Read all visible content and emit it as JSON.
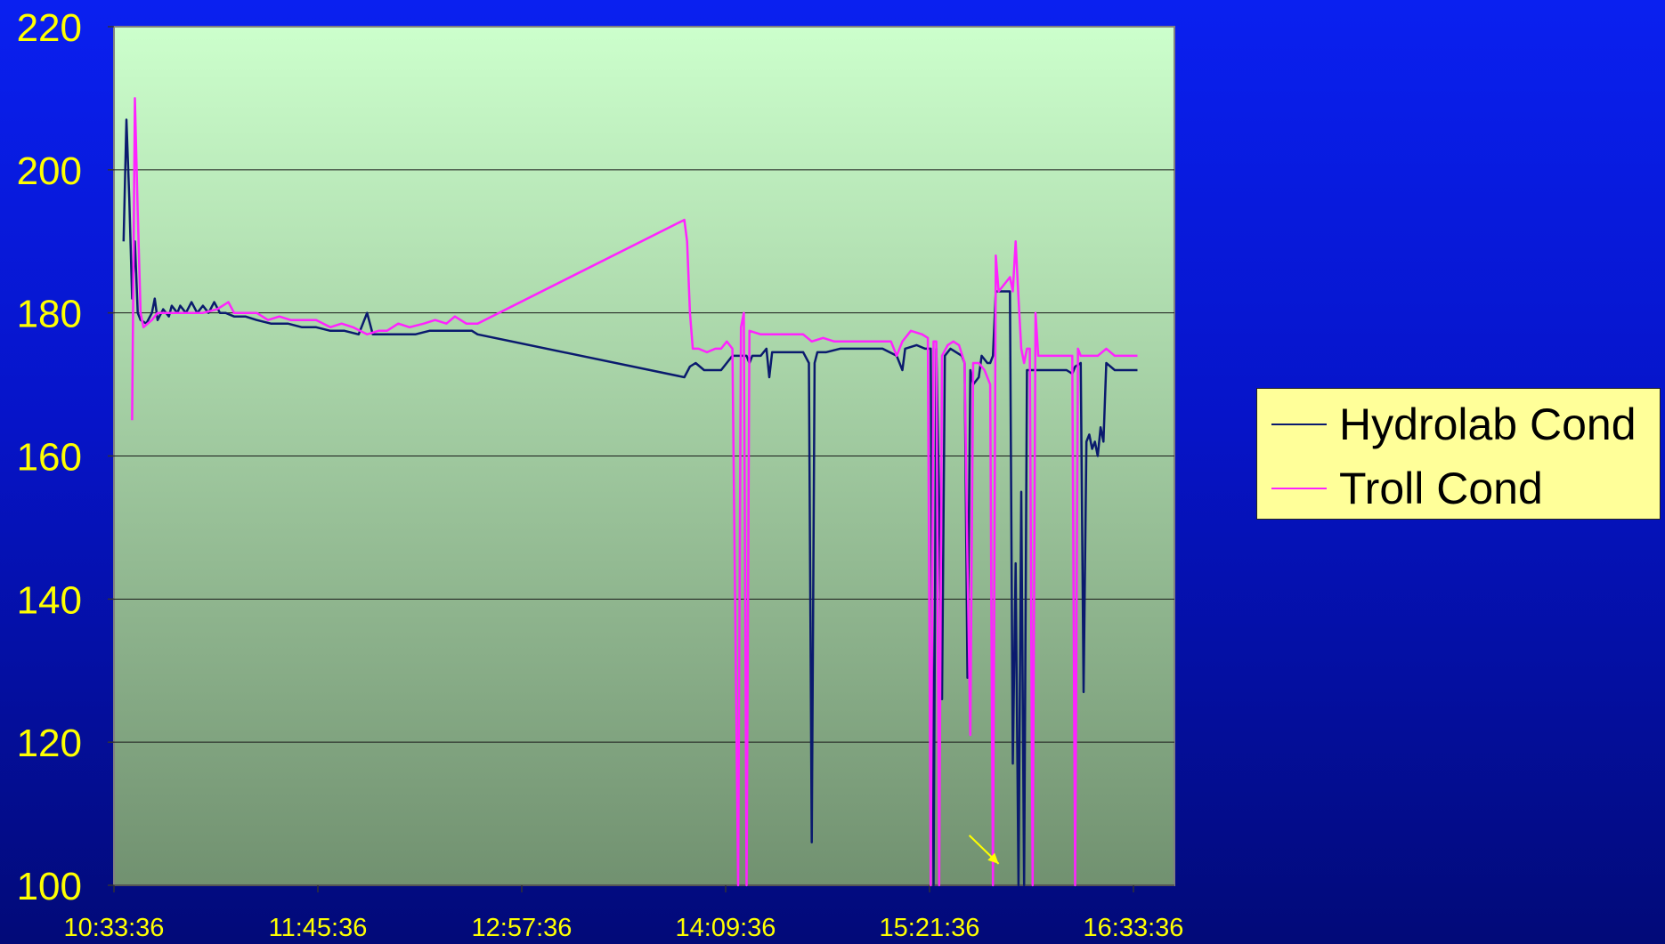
{
  "chart_data": {
    "type": "line",
    "title": "",
    "xlabel": "",
    "ylabel": "",
    "ylim": [
      100,
      220
    ],
    "yticks": [
      100,
      120,
      140,
      160,
      180,
      200,
      220
    ],
    "xticks": [
      "10:33:36",
      "11:45:36",
      "12:57:36",
      "14:09:36",
      "15:21:36",
      "16:33:36"
    ],
    "xlim_minutes_from_first_tick": [
      0,
      375
    ],
    "grid": "horizontal",
    "legend_position": "right",
    "annotations": [
      {
        "type": "arrow",
        "color": "#ffff00",
        "points_to": {
          "x": "15:46",
          "y": 103
        }
      }
    ],
    "series": [
      {
        "name": "Hydrolab Cond",
        "color": "#0a1a6e",
        "points": [
          [
            "10:37",
            190
          ],
          [
            "10:38",
            207
          ],
          [
            "10:39",
            196
          ],
          [
            "10:40",
            182
          ],
          [
            "10:41",
            190
          ],
          [
            "10:42",
            180
          ],
          [
            "10:43",
            179
          ],
          [
            "10:45",
            178.5
          ],
          [
            "10:47",
            180
          ],
          [
            "10:48",
            182
          ],
          [
            "10:49",
            179
          ],
          [
            "10:51",
            180.5
          ],
          [
            "10:53",
            179.5
          ],
          [
            "10:54",
            181
          ],
          [
            "10:56",
            180
          ],
          [
            "10:57",
            181
          ],
          [
            "10:59",
            180
          ],
          [
            "11:01",
            181.5
          ],
          [
            "11:03",
            180
          ],
          [
            "11:05",
            181
          ],
          [
            "11:07",
            180
          ],
          [
            "11:09",
            181.5
          ],
          [
            "11:11",
            180
          ],
          [
            "11:13",
            180
          ],
          [
            "11:16",
            179.5
          ],
          [
            "11:20",
            179.5
          ],
          [
            "11:24",
            179
          ],
          [
            "11:29",
            178.5
          ],
          [
            "11:35",
            178.5
          ],
          [
            "11:40",
            178
          ],
          [
            "11:45",
            178
          ],
          [
            "11:50",
            177.5
          ],
          [
            "11:55",
            177.5
          ],
          [
            "12:00",
            177
          ],
          [
            "12:03",
            180
          ],
          [
            "12:05",
            177
          ],
          [
            "12:10",
            177
          ],
          [
            "12:15",
            177
          ],
          [
            "12:20",
            177
          ],
          [
            "12:25",
            177.5
          ],
          [
            "12:30",
            177.5
          ],
          [
            "12:36",
            177.5
          ],
          [
            "12:40",
            177.5
          ],
          [
            "12:42",
            177
          ],
          [
            "13:55",
            171
          ],
          [
            "13:57",
            172.5
          ],
          [
            "13:59",
            173
          ],
          [
            "14:02",
            172
          ],
          [
            "14:05",
            172
          ],
          [
            "14:08",
            172
          ],
          [
            "14:12",
            174
          ],
          [
            "14:15",
            174
          ],
          [
            "14:17",
            174
          ],
          [
            "14:18",
            173
          ],
          [
            "14:19",
            174
          ],
          [
            "14:22",
            174
          ],
          [
            "14:24",
            175
          ],
          [
            "14:25",
            171
          ],
          [
            "14:26",
            174.5
          ],
          [
            "14:32",
            174.5
          ],
          [
            "14:37",
            174.5
          ],
          [
            "14:39",
            173
          ],
          [
            "14:40",
            106
          ],
          [
            "14:41",
            173
          ],
          [
            "14:42",
            174.5
          ],
          [
            "14:45",
            174.5
          ],
          [
            "14:50",
            175
          ],
          [
            "14:58",
            175
          ],
          [
            "15:05",
            175
          ],
          [
            "15:10",
            174
          ],
          [
            "15:12",
            172
          ],
          [
            "15:13",
            175
          ],
          [
            "15:17",
            175.5
          ],
          [
            "15:20",
            175
          ],
          [
            "15:22",
            175
          ],
          [
            "15:23",
            100
          ],
          [
            "15:24",
            175
          ],
          [
            "15:25",
            153
          ],
          [
            "15:26",
            126
          ],
          [
            "15:27",
            174
          ],
          [
            "15:29",
            175
          ],
          [
            "15:31",
            174.5
          ],
          [
            "15:33",
            174
          ],
          [
            "15:34",
            173
          ],
          [
            "15:35",
            129
          ],
          [
            "15:36",
            172
          ],
          [
            "15:37",
            170
          ],
          [
            "15:39",
            171
          ],
          [
            "15:40",
            174
          ],
          [
            "15:42",
            173
          ],
          [
            "15:43",
            173
          ],
          [
            "15:44",
            174
          ],
          [
            "15:45",
            183
          ],
          [
            "15:47",
            183
          ],
          [
            "15:49",
            183
          ],
          [
            "15:50",
            183
          ],
          [
            "15:51",
            117
          ],
          [
            "15:52",
            145
          ],
          [
            "15:53",
            100
          ],
          [
            "15:54",
            155
          ],
          [
            "15:55",
            100
          ],
          [
            "15:56",
            172
          ],
          [
            "15:57",
            172
          ],
          [
            "16:00",
            172
          ],
          [
            "16:05",
            172
          ],
          [
            "16:10",
            172
          ],
          [
            "16:12",
            171.5
          ],
          [
            "16:13",
            172.5
          ],
          [
            "16:15",
            173
          ],
          [
            "16:16",
            127
          ],
          [
            "16:17",
            162
          ],
          [
            "16:18",
            163
          ],
          [
            "16:19",
            161
          ],
          [
            "16:20",
            162
          ],
          [
            "16:21",
            160
          ],
          [
            "16:22",
            164
          ],
          [
            "16:23",
            162
          ],
          [
            "16:24",
            173
          ],
          [
            "16:27",
            172
          ],
          [
            "16:30",
            172
          ],
          [
            "16:35",
            172
          ]
        ]
      },
      {
        "name": "Troll Cond",
        "color": "#ff22ff",
        "points": [
          [
            "10:40",
            165
          ],
          [
            "10:41",
            210
          ],
          [
            "10:42",
            194
          ],
          [
            "10:43",
            180
          ],
          [
            "10:44",
            178
          ],
          [
            "10:47",
            179
          ],
          [
            "10:49",
            180
          ],
          [
            "10:52",
            180
          ],
          [
            "10:56",
            180
          ],
          [
            "11:00",
            180
          ],
          [
            "11:05",
            180
          ],
          [
            "11:10",
            180.5
          ],
          [
            "11:14",
            181.5
          ],
          [
            "11:16",
            180
          ],
          [
            "11:20",
            180
          ],
          [
            "11:24",
            180
          ],
          [
            "11:28",
            179
          ],
          [
            "11:32",
            179.5
          ],
          [
            "11:36",
            179
          ],
          [
            "11:40",
            179
          ],
          [
            "11:45",
            179
          ],
          [
            "11:50",
            178
          ],
          [
            "11:54",
            178.5
          ],
          [
            "11:58",
            178
          ],
          [
            "12:03",
            177
          ],
          [
            "12:07",
            177.5
          ],
          [
            "12:10",
            177.5
          ],
          [
            "12:14",
            178.5
          ],
          [
            "12:18",
            178
          ],
          [
            "12:23",
            178.5
          ],
          [
            "12:27",
            179
          ],
          [
            "12:31",
            178.5
          ],
          [
            "12:34",
            179.5
          ],
          [
            "12:38",
            178.5
          ],
          [
            "12:40",
            178.5
          ],
          [
            "12:42",
            178.5
          ],
          [
            "13:55",
            193
          ],
          [
            "13:56",
            190
          ],
          [
            "13:57",
            180
          ],
          [
            "13:58",
            175
          ],
          [
            "14:00",
            175
          ],
          [
            "14:03",
            174.5
          ],
          [
            "14:06",
            175
          ],
          [
            "14:08",
            175
          ],
          [
            "14:10",
            176
          ],
          [
            "14:12",
            175
          ],
          [
            "14:14",
            100
          ],
          [
            "14:15",
            178
          ],
          [
            "14:16",
            180
          ],
          [
            "14:17",
            100
          ],
          [
            "14:18",
            177.5
          ],
          [
            "14:22",
            177
          ],
          [
            "14:26",
            177
          ],
          [
            "14:30",
            177
          ],
          [
            "14:34",
            177
          ],
          [
            "14:37",
            177
          ],
          [
            "14:40",
            176
          ],
          [
            "14:44",
            176.5
          ],
          [
            "14:48",
            176
          ],
          [
            "14:52",
            176
          ],
          [
            "14:58",
            176
          ],
          [
            "15:04",
            176
          ],
          [
            "15:08",
            176
          ],
          [
            "15:10",
            174
          ],
          [
            "15:12",
            176
          ],
          [
            "15:15",
            177.5
          ],
          [
            "15:19",
            177
          ],
          [
            "15:21",
            176.5
          ],
          [
            "15:22",
            100
          ],
          [
            "15:23",
            176
          ],
          [
            "15:24",
            176
          ],
          [
            "15:25",
            100
          ],
          [
            "15:26",
            174
          ],
          [
            "15:28",
            175.5
          ],
          [
            "15:30",
            176
          ],
          [
            "15:32",
            175.5
          ],
          [
            "15:34",
            173
          ],
          [
            "15:35",
            145
          ],
          [
            "15:36",
            121
          ],
          [
            "15:37",
            173
          ],
          [
            "15:39",
            173
          ],
          [
            "15:41",
            172
          ],
          [
            "15:43",
            170
          ],
          [
            "15:44",
            100
          ],
          [
            "15:45",
            188
          ],
          [
            "15:46",
            183
          ],
          [
            "15:48",
            184
          ],
          [
            "15:50",
            185
          ],
          [
            "15:51",
            183
          ],
          [
            "15:52",
            190
          ],
          [
            "15:53",
            182
          ],
          [
            "15:54",
            175
          ],
          [
            "15:55",
            173
          ],
          [
            "15:56",
            175
          ],
          [
            "15:57",
            175
          ],
          [
            "15:58",
            100
          ],
          [
            "15:59",
            180
          ],
          [
            "16:00",
            174
          ],
          [
            "16:03",
            174
          ],
          [
            "16:06",
            174
          ],
          [
            "16:09",
            174
          ],
          [
            "16:12",
            174
          ],
          [
            "16:13",
            100
          ],
          [
            "16:14",
            175
          ],
          [
            "16:15",
            174
          ],
          [
            "16:18",
            174
          ],
          [
            "16:21",
            174
          ],
          [
            "16:24",
            175
          ],
          [
            "16:27",
            174
          ],
          [
            "16:31",
            174
          ],
          [
            "16:35",
            174
          ]
        ]
      }
    ]
  }
}
